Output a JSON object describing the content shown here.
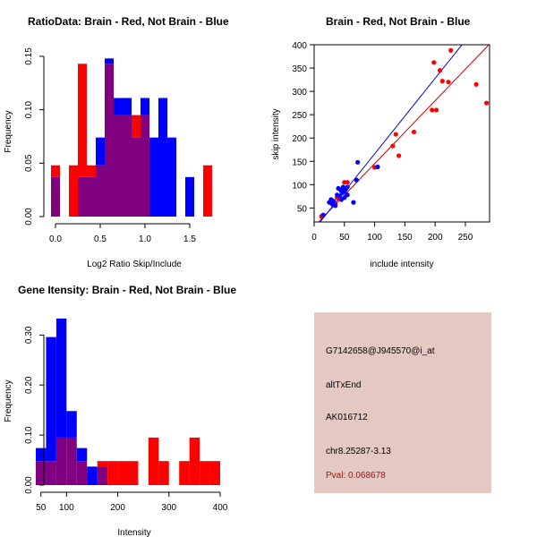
{
  "colors": {
    "red": "#ff0000",
    "blue": "#0000ff",
    "purple": "#800080",
    "red_line": "#cc0000",
    "blue_line": "#0000cc",
    "info_bg": "#e6c8c2",
    "pval": "#a11212"
  },
  "chart_data": [
    {
      "type": "bar",
      "title": "RatioData: Brain - Red, Not Brain - Blue",
      "xlabel": "Log2 Ratio Skip/Include",
      "ylabel": "Frequency",
      "xlim": [
        -0.05,
        1.85
      ],
      "ylim": [
        0,
        0.16
      ],
      "bin_width": 0.1,
      "bin_starts": [
        -0.05,
        0.05,
        0.15,
        0.25,
        0.35,
        0.45,
        0.55,
        0.65,
        0.75,
        0.85,
        0.95,
        1.05,
        1.15,
        1.25,
        1.35,
        1.45,
        1.55,
        1.65,
        1.75
      ],
      "series": [
        {
          "name": "Brain",
          "color": "red",
          "values": [
            0.048,
            0,
            0.048,
            0.143,
            0.048,
            0.048,
            0.143,
            0.095,
            0.095,
            0.095,
            0.095,
            0,
            0,
            0,
            0,
            0,
            0,
            0.048,
            0
          ]
        },
        {
          "name": "Not Brain",
          "color": "blue",
          "values": [
            0.037,
            0,
            0,
            0.037,
            0.037,
            0.074,
            0.148,
            0.111,
            0.111,
            0.074,
            0.111,
            0.074,
            0.111,
            0.074,
            0,
            0.037,
            0,
            0,
            0
          ]
        }
      ],
      "xticks": [
        0.0,
        0.5,
        1.0,
        1.5
      ],
      "xtick_labels": [
        "0.0",
        "0.5",
        "1.0",
        "1.5"
      ],
      "yticks": [
        0.0,
        0.05,
        0.1,
        0.15
      ],
      "ytick_labels": [
        "0.00",
        "0.05",
        "0.10",
        "0.15"
      ]
    },
    {
      "type": "scatter",
      "title": "Brain - Red, Not Brain - Blue",
      "xlabel": "include intensity",
      "ylabel": "skip intensity",
      "xlim": [
        0,
        290
      ],
      "ylim": [
        20,
        400
      ],
      "xticks": [
        0,
        50,
        100,
        150,
        200,
        250
      ],
      "xtick_labels": [
        "0",
        "50",
        "100",
        "150",
        "200",
        "250"
      ],
      "yticks": [
        50,
        100,
        150,
        200,
        250,
        300,
        350,
        400
      ],
      "ytick_labels": [
        "50",
        "100",
        "150",
        "200",
        "250",
        "300",
        "350",
        "400"
      ],
      "series": [
        {
          "name": "Brain",
          "color": "red",
          "x": [
            12,
            35,
            38,
            42,
            45,
            50,
            55,
            100,
            130,
            135,
            140,
            165,
            195,
            198,
            202,
            208,
            212,
            222,
            226,
            268,
            285
          ],
          "y": [
            32,
            60,
            72,
            70,
            90,
            105,
            105,
            137,
            183,
            208,
            162,
            213,
            260,
            362,
            260,
            345,
            322,
            320,
            388,
            315,
            275
          ]
        },
        {
          "name": "Not Brain",
          "color": "blue",
          "x": [
            15,
            25,
            28,
            30,
            32,
            35,
            38,
            40,
            42,
            44,
            45,
            46,
            48,
            50,
            50,
            52,
            55,
            55,
            65,
            70,
            72,
            105
          ],
          "y": [
            35,
            62,
            68,
            58,
            65,
            55,
            78,
            92,
            75,
            88,
            68,
            82,
            95,
            72,
            85,
            90,
            78,
            95,
            62,
            110,
            148,
            138
          ]
        }
      ],
      "fit_lines": [
        {
          "name": "Brain",
          "color": "red_line",
          "slope": 1.35,
          "intercept": 10
        },
        {
          "name": "Not Brain",
          "color": "blue_line",
          "slope": 1.62,
          "intercept": 4
        }
      ]
    },
    {
      "type": "bar",
      "title": "Gene Itensity: Brain - Red, Not Brain - Blue",
      "xlabel": "Intensity",
      "ylabel": "Frequency",
      "xlim": [
        40,
        400
      ],
      "ylim": [
        0,
        0.34
      ],
      "bin_width": 20,
      "bin_starts": [
        40,
        60,
        80,
        100,
        120,
        140,
        160,
        180,
        200,
        220,
        240,
        260,
        280,
        300,
        320,
        340,
        360,
        380
      ],
      "series": [
        {
          "name": "Brain",
          "color": "red",
          "values": [
            0.048,
            0.048,
            0.095,
            0.095,
            0.048,
            0,
            0.048,
            0.048,
            0.048,
            0.048,
            0,
            0.095,
            0.048,
            0,
            0.048,
            0.095,
            0.048,
            0.048
          ]
        },
        {
          "name": "Not Brain",
          "color": "blue",
          "values": [
            0.074,
            0.296,
            0.333,
            0.148,
            0.074,
            0.037,
            0.037,
            0,
            0,
            0,
            0,
            0,
            0,
            0,
            0,
            0,
            0,
            0
          ]
        }
      ],
      "xticks": [
        50,
        100,
        200,
        300,
        400
      ],
      "xtick_labels": [
        "50",
        "100",
        "200",
        "300",
        "400"
      ],
      "yticks": [
        0.0,
        0.1,
        0.2,
        0.3
      ],
      "ytick_labels": [
        "0.00",
        "0.10",
        "0.20",
        "0.30"
      ]
    }
  ],
  "info": {
    "probe_id": "G7142658@J945570@i_at",
    "event_type": "altTxEnd",
    "accession": "AK016712",
    "location": "chr8.25287-3.13",
    "pval": "Pval: 0.068678"
  }
}
